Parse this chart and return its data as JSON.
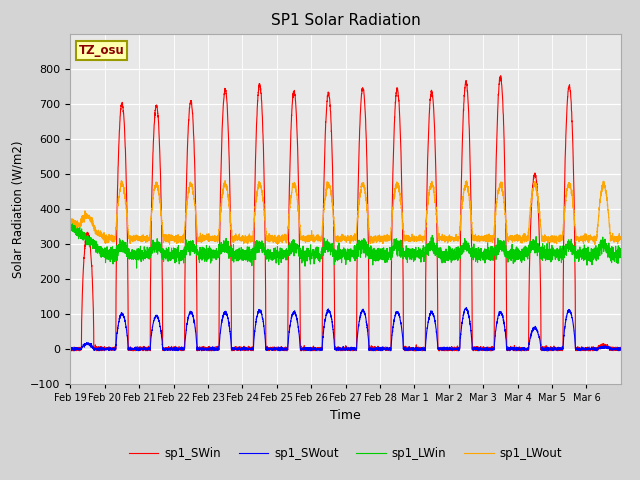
{
  "title": "SP1 Solar Radiation",
  "xlabel": "Time",
  "ylabel": "Solar Radiation (W/m2)",
  "ylim": [
    -100,
    900
  ],
  "yticks": [
    -100,
    0,
    100,
    200,
    300,
    400,
    500,
    600,
    700,
    800
  ],
  "colors": {
    "sp1_SWin": "#ff0000",
    "sp1_SWout": "#0000ff",
    "sp1_LWin": "#00cc00",
    "sp1_LWout": "#ffa500"
  },
  "tz_label": "TZ_osu",
  "fig_facecolor": "#d4d4d4",
  "plot_facecolor": "#e8e8e8",
  "grid_color": "#ffffff",
  "legend_labels": [
    "sp1_SWin",
    "sp1_SWout",
    "sp1_LWin",
    "sp1_LWout"
  ],
  "tick_labels": [
    "Feb 19",
    "Feb 20",
    "Feb 21",
    "Feb 22",
    "Feb 23",
    "Feb 24",
    "Feb 25",
    "Feb 26",
    "Feb 27",
    "Feb 28",
    "Mar 1",
    "Mar 2",
    "Mar 3",
    "Mar 4",
    "Mar 5",
    "Mar 6"
  ],
  "days": 16
}
